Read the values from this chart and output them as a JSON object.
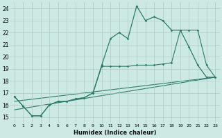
{
  "xlabel": "Humidex (Indice chaleur)",
  "bg_color": "#cce9e4",
  "grid_color": "#b0c8c4",
  "line_color": "#2a7a6a",
  "xlim": [
    -0.5,
    23.5
  ],
  "ylim": [
    14.5,
    24.5
  ],
  "xticks": [
    0,
    1,
    2,
    3,
    4,
    5,
    6,
    7,
    8,
    9,
    10,
    11,
    12,
    13,
    14,
    15,
    16,
    17,
    18,
    19,
    20,
    21,
    22,
    23
  ],
  "yticks": [
    15,
    16,
    17,
    18,
    19,
    20,
    21,
    22,
    23,
    24
  ],
  "series1_x": [
    0,
    1,
    2,
    3,
    4,
    5,
    6,
    7,
    8,
    9,
    10,
    11,
    12,
    13,
    14,
    15,
    16,
    17,
    18,
    19,
    20,
    21,
    22,
    23
  ],
  "series1_y": [
    16.7,
    15.9,
    15.1,
    15.1,
    16.0,
    16.3,
    16.3,
    16.5,
    16.6,
    17.0,
    19.3,
    21.5,
    22.0,
    21.5,
    24.2,
    23.0,
    23.3,
    23.0,
    22.2,
    22.2,
    20.8,
    19.3,
    18.3,
    18.3
  ],
  "series2_x": [
    0,
    1,
    2,
    3,
    4,
    5,
    6,
    7,
    8,
    9,
    10,
    11,
    12,
    13,
    14,
    15,
    16,
    17,
    18,
    19,
    20,
    21,
    22,
    23
  ],
  "series2_y": [
    16.7,
    15.9,
    15.1,
    15.1,
    16.0,
    16.3,
    16.3,
    16.5,
    16.6,
    17.0,
    19.2,
    19.2,
    19.2,
    19.2,
    19.3,
    19.3,
    19.3,
    19.4,
    19.5,
    22.2,
    22.2,
    22.2,
    19.3,
    18.3
  ],
  "line3_x": [
    0,
    23
  ],
  "line3_y": [
    15.6,
    18.3
  ],
  "line4_x": [
    0,
    23
  ],
  "line4_y": [
    16.3,
    18.3
  ]
}
